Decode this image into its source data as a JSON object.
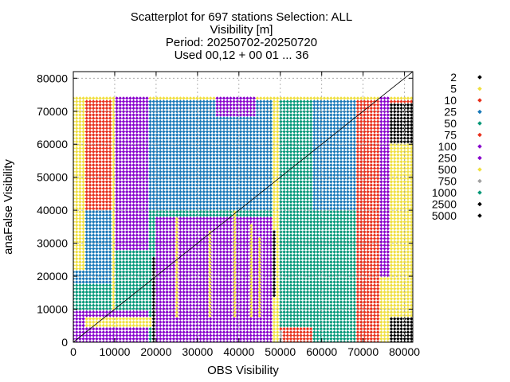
{
  "chart_data": {
    "type": "scatter",
    "title": [
      "Scatterplot for  697 stations Selection: ALL",
      "Visibility [m]",
      "Period: 20250702-20250720",
      "Used 00,12 + 00 01 ... 36"
    ],
    "xlabel": "OBS Visibility",
    "ylabel": "anaFalse Visibility",
    "xlim": [
      0,
      82000
    ],
    "ylim": [
      0,
      82000
    ],
    "xticks": [
      0,
      10000,
      20000,
      30000,
      40000,
      50000,
      60000,
      70000,
      80000
    ],
    "yticks": [
      0,
      10000,
      20000,
      30000,
      40000,
      50000,
      60000,
      70000,
      80000
    ],
    "grid": true,
    "diagonal": true,
    "legend_position": "right",
    "legend": [
      {
        "label": "2",
        "color": "#000000"
      },
      {
        "label": "5",
        "color": "#f0e040"
      },
      {
        "label": "10",
        "color": "#e8301c"
      },
      {
        "label": "25",
        "color": "#1878b8"
      },
      {
        "label": "50",
        "color": "#009878"
      },
      {
        "label": "75",
        "color": "#e8301c"
      },
      {
        "label": "100",
        "color": "#8800cc"
      },
      {
        "label": "250",
        "color": "#8800cc"
      },
      {
        "label": "500",
        "color": "#f0e040"
      },
      {
        "label": "750",
        "color": "#a0a0a0"
      },
      {
        "label": "1000",
        "color": "#009878"
      },
      {
        "label": "2500",
        "color": "#000000"
      },
      {
        "label": "5000",
        "color": "#000000"
      }
    ],
    "regions": [
      {
        "category": "50",
        "x": [
          0,
          82000
        ],
        "y": [
          0,
          74000
        ]
      },
      {
        "category": "25",
        "x": [
          0,
          10000
        ],
        "y": [
          18000,
          74000
        ]
      },
      {
        "category": "25",
        "x": [
          18000,
          48000
        ],
        "y": [
          40000,
          74000
        ]
      },
      {
        "category": "25",
        "x": [
          58000,
          74000
        ],
        "y": [
          40000,
          74000
        ]
      },
      {
        "category": "10",
        "x": [
          0,
          18000
        ],
        "y": [
          40000,
          74000
        ]
      },
      {
        "category": "10",
        "x": [
          68000,
          82000
        ],
        "y": [
          0,
          74000
        ]
      },
      {
        "category": "10",
        "x": [
          40000,
          58000
        ],
        "y": [
          0,
          5000
        ]
      },
      {
        "category": "5",
        "x": [
          0,
          3000
        ],
        "y": [
          22000,
          74000
        ]
      },
      {
        "category": "5",
        "x": [
          74000,
          82000
        ],
        "y": [
          0,
          68000
        ]
      },
      {
        "category": "5",
        "x": [
          0,
          82000
        ],
        "y": [
          73000,
          74000
        ]
      },
      {
        "category": "100",
        "x": [
          0,
          18000
        ],
        "y": [
          0,
          10000
        ]
      },
      {
        "category": "100",
        "x": [
          20000,
          49000
        ],
        "y": [
          0,
          38000
        ]
      },
      {
        "category": "100",
        "x": [
          10000,
          18000
        ],
        "y": [
          28000,
          74000
        ]
      },
      {
        "category": "100",
        "x": [
          34000,
          44000
        ],
        "y": [
          68000,
          74000
        ]
      },
      {
        "category": "100",
        "x": [
          74000,
          76000
        ],
        "y": [
          20000,
          74000
        ]
      },
      {
        "category": "500",
        "x": [
          9000,
          10000
        ],
        "y": [
          10000,
          74000
        ]
      },
      {
        "category": "500",
        "x": [
          48500,
          50000
        ],
        "y": [
          0,
          74000
        ]
      },
      {
        "category": "500",
        "x": [
          3000,
          20000
        ],
        "y": [
          5000,
          8000
        ]
      },
      {
        "category": "750",
        "x": [
          49500,
          50500
        ],
        "y": [
          0,
          4000
        ]
      },
      {
        "category": "2",
        "x": [
          19000,
          19800
        ],
        "y": [
          0,
          26000
        ]
      },
      {
        "category": "2",
        "x": [
          48000,
          49000
        ],
        "y": [
          14000,
          34000
        ]
      },
      {
        "category": "2",
        "x": [
          76000,
          82000
        ],
        "y": [
          0,
          8000
        ]
      },
      {
        "category": "2",
        "x": [
          76000,
          82000
        ],
        "y": [
          60000,
          72000
        ]
      }
    ],
    "vertical_bands": [
      {
        "category": "500",
        "x": 25000,
        "y": [
          8000,
          38000
        ]
      },
      {
        "category": "500",
        "x": 33000,
        "y": [
          8000,
          34000
        ]
      },
      {
        "category": "500",
        "x": 39000,
        "y": [
          8000,
          40000
        ]
      },
      {
        "category": "500",
        "x": 43000,
        "y": [
          8000,
          36000
        ]
      },
      {
        "category": "500",
        "x": 45000,
        "y": [
          8000,
          32000
        ]
      }
    ]
  }
}
